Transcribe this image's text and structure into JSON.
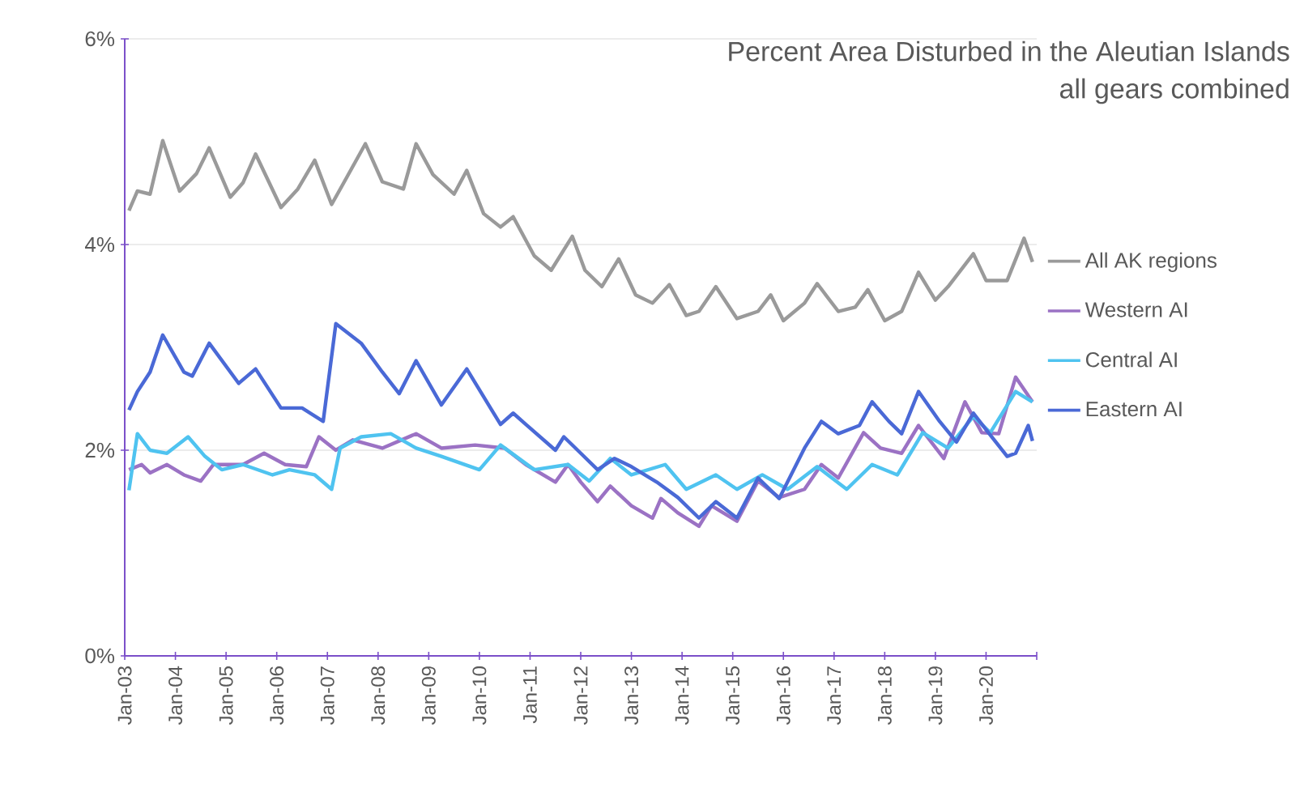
{
  "chart_data": {
    "type": "line",
    "title": "Percent Area Disturbed in the Aleutian Islands",
    "subtitle": "all gears combined",
    "xlim": [
      "2003-01",
      "2021-01"
    ],
    "xticks": [
      {
        "value": "2003-01",
        "label": "Jan-03"
      },
      {
        "value": "2004-01",
        "label": "Jan-04"
      },
      {
        "value": "2005-01",
        "label": "Jan-05"
      },
      {
        "value": "2006-01",
        "label": "Jan-06"
      },
      {
        "value": "2007-01",
        "label": "Jan-07"
      },
      {
        "value": "2008-01",
        "label": "Jan-08"
      },
      {
        "value": "2009-01",
        "label": "Jan-09"
      },
      {
        "value": "2010-01",
        "label": "Jan-10"
      },
      {
        "value": "2011-01",
        "label": "Jan-11"
      },
      {
        "value": "2012-01",
        "label": "Jan-12"
      },
      {
        "value": "2013-01",
        "label": "Jan-13"
      },
      {
        "value": "2014-01",
        "label": "Jan-14"
      },
      {
        "value": "2015-01",
        "label": "Jan-15"
      },
      {
        "value": "2016-01",
        "label": "Jan-16"
      },
      {
        "value": "2017-01",
        "label": "Jan-17"
      },
      {
        "value": "2018-01",
        "label": "Jan-18"
      },
      {
        "value": "2019-01",
        "label": "Jan-19"
      },
      {
        "value": "2020-01",
        "label": "Jan-20"
      },
      {
        "value": "2021-01",
        "label": null
      }
    ],
    "ylim": [
      0,
      6
    ],
    "yticks": [
      {
        "value": 0,
        "label": "0%"
      },
      {
        "value": 2,
        "label": "2%"
      },
      {
        "value": 4,
        "label": "4%"
      },
      {
        "value": 6,
        "label": "6%"
      }
    ],
    "grid": "y",
    "legend": "right",
    "line_style": "solid",
    "series": [
      {
        "name": "All AK regions",
        "color": "#9a9a9a",
        "x": [
          "2003-02",
          "2003-04",
          "2003-07",
          "2003-10",
          "2004-02",
          "2004-06",
          "2004-09",
          "2005-02",
          "2005-05",
          "2005-08",
          "2006-02",
          "2006-06",
          "2006-10",
          "2007-02",
          "2007-05",
          "2007-10",
          "2008-02",
          "2008-07",
          "2008-10",
          "2009-02",
          "2009-07",
          "2009-10",
          "2010-02",
          "2010-06",
          "2010-09",
          "2011-02",
          "2011-06",
          "2011-11",
          "2012-02",
          "2012-06",
          "2012-10",
          "2013-02",
          "2013-06",
          "2013-10",
          "2014-02",
          "2014-05",
          "2014-09",
          "2015-02",
          "2015-07",
          "2015-10",
          "2016-01",
          "2016-06",
          "2016-09",
          "2017-02",
          "2017-06",
          "2017-09",
          "2018-01",
          "2018-05",
          "2018-09",
          "2019-01",
          "2019-04",
          "2019-10",
          "2020-01",
          "2020-06",
          "2020-10",
          "2020-12"
        ],
        "values": [
          4.33,
          4.52,
          4.49,
          5.01,
          4.52,
          4.69,
          4.94,
          4.46,
          4.6,
          4.88,
          4.36,
          4.54,
          4.82,
          4.39,
          4.61,
          4.98,
          4.61,
          4.54,
          4.98,
          4.68,
          4.49,
          4.72,
          4.3,
          4.17,
          4.27,
          3.89,
          3.75,
          4.08,
          3.75,
          3.59,
          3.86,
          3.51,
          3.43,
          3.61,
          3.31,
          3.35,
          3.59,
          3.28,
          3.35,
          3.51,
          3.26,
          3.43,
          3.62,
          3.35,
          3.39,
          3.56,
          3.26,
          3.35,
          3.73,
          3.46,
          3.59,
          3.91,
          3.65,
          3.65,
          4.06,
          3.83
        ]
      },
      {
        "name": "Western AI",
        "color": "#9b72c4",
        "x": [
          "2003-02",
          "2003-05",
          "2003-07",
          "2003-11",
          "2004-03",
          "2004-07",
          "2004-10",
          "2005-05",
          "2005-10",
          "2006-03",
          "2006-08",
          "2006-11",
          "2007-03",
          "2007-07",
          "2008-02",
          "2008-10",
          "2009-04",
          "2009-12",
          "2010-07",
          "2010-12",
          "2011-07",
          "2011-10",
          "2012-01",
          "2012-05",
          "2012-08",
          "2013-01",
          "2013-06",
          "2013-08",
          "2013-12",
          "2014-05",
          "2014-08",
          "2015-02",
          "2015-07",
          "2015-12",
          "2016-06",
          "2016-10",
          "2017-02",
          "2017-08",
          "2017-12",
          "2018-05",
          "2018-09",
          "2019-03",
          "2019-08",
          "2019-12",
          "2020-04",
          "2020-08",
          "2020-12"
        ],
        "values": [
          1.81,
          1.86,
          1.78,
          1.86,
          1.76,
          1.7,
          1.86,
          1.86,
          1.97,
          1.86,
          1.84,
          2.13,
          2.0,
          2.1,
          2.02,
          2.16,
          2.02,
          2.05,
          2.02,
          1.86,
          1.69,
          1.86,
          1.69,
          1.5,
          1.65,
          1.46,
          1.34,
          1.53,
          1.39,
          1.26,
          1.46,
          1.31,
          1.7,
          1.54,
          1.62,
          1.86,
          1.73,
          2.17,
          2.02,
          1.97,
          2.24,
          1.92,
          2.47,
          2.17,
          2.16,
          2.71,
          2.47
        ]
      },
      {
        "name": "Central AI",
        "color": "#4fc3f0",
        "x": [
          "2003-02",
          "2003-04",
          "2003-07",
          "2003-11",
          "2004-04",
          "2004-08",
          "2004-12",
          "2005-05",
          "2005-12",
          "2006-04",
          "2006-10",
          "2007-02",
          "2007-04",
          "2007-09",
          "2008-04",
          "2008-10",
          "2009-04",
          "2010-01",
          "2010-06",
          "2011-02",
          "2011-10",
          "2012-03",
          "2012-08",
          "2013-01",
          "2013-09",
          "2014-02",
          "2014-09",
          "2015-02",
          "2015-08",
          "2016-02",
          "2016-09",
          "2017-04",
          "2017-10",
          "2018-04",
          "2018-10",
          "2019-04",
          "2019-10",
          "2020-02",
          "2020-08",
          "2020-12"
        ],
        "values": [
          1.61,
          2.16,
          2.0,
          1.97,
          2.13,
          1.94,
          1.81,
          1.86,
          1.76,
          1.81,
          1.76,
          1.62,
          2.02,
          2.13,
          2.16,
          2.02,
          1.94,
          1.81,
          2.05,
          1.81,
          1.86,
          1.7,
          1.92,
          1.76,
          1.86,
          1.62,
          1.76,
          1.62,
          1.76,
          1.62,
          1.84,
          1.62,
          1.86,
          1.76,
          2.17,
          2.02,
          2.33,
          2.17,
          2.57,
          2.47
        ]
      },
      {
        "name": "Eastern AI",
        "color": "#4a69d6",
        "x": [
          "2003-02",
          "2003-04",
          "2003-07",
          "2003-10",
          "2004-03",
          "2004-05",
          "2004-09",
          "2005-04",
          "2005-08",
          "2006-02",
          "2006-07",
          "2006-12",
          "2007-03",
          "2007-09",
          "2008-02",
          "2008-06",
          "2008-10",
          "2009-04",
          "2009-10",
          "2010-06",
          "2010-09",
          "2010-12",
          "2011-07",
          "2011-09",
          "2011-10",
          "2012-01",
          "2012-05",
          "2012-09",
          "2013-01",
          "2013-07",
          "2013-12",
          "2014-05",
          "2014-09",
          "2015-02",
          "2015-07",
          "2015-12",
          "2016-06",
          "2016-10",
          "2017-02",
          "2017-07",
          "2017-10",
          "2018-02",
          "2018-05",
          "2018-09",
          "2019-02",
          "2019-06",
          "2019-10",
          "2020-01",
          "2020-06",
          "2020-08",
          "2020-11",
          "2020-12"
        ],
        "values": [
          2.39,
          2.57,
          2.76,
          3.12,
          2.76,
          2.72,
          3.04,
          2.65,
          2.79,
          2.41,
          2.41,
          2.28,
          3.23,
          3.04,
          2.76,
          2.55,
          2.87,
          2.44,
          2.79,
          2.25,
          2.36,
          2.25,
          2.0,
          2.13,
          2.09,
          1.97,
          1.81,
          1.92,
          1.84,
          1.69,
          1.54,
          1.34,
          1.5,
          1.34,
          1.73,
          1.53,
          2.02,
          2.28,
          2.16,
          2.24,
          2.47,
          2.28,
          2.16,
          2.57,
          2.28,
          2.08,
          2.36,
          2.2,
          1.94,
          1.97,
          2.24,
          2.09
        ]
      }
    ]
  }
}
